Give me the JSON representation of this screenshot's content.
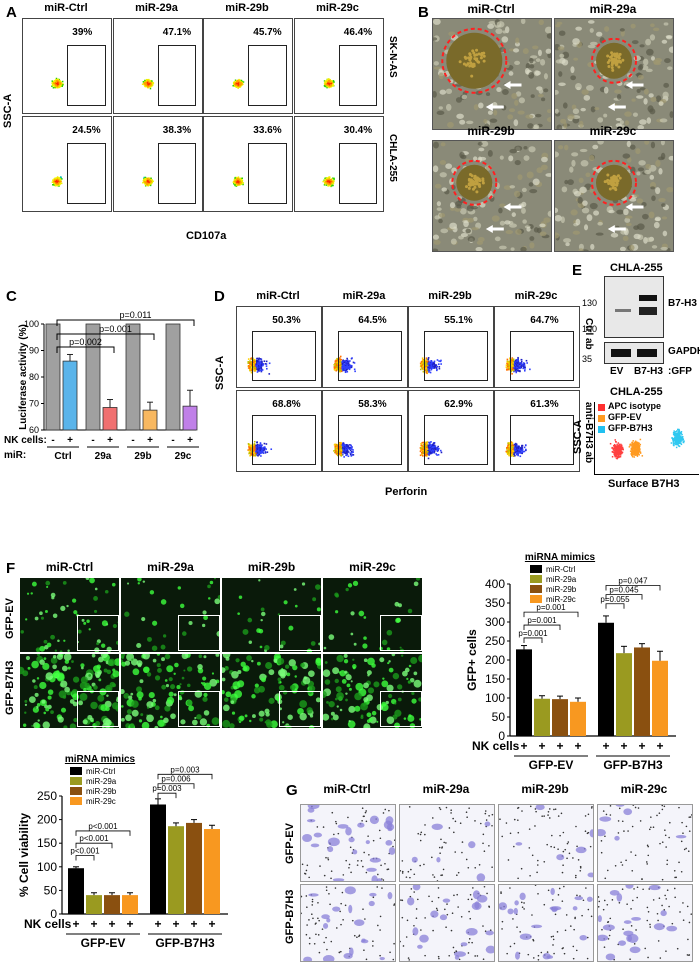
{
  "panels": {
    "A": "A",
    "B": "B",
    "C": "C",
    "D": "D",
    "E": "E",
    "F": "F",
    "G": "G"
  },
  "panelA": {
    "cols": [
      "miR-Ctrl",
      "miR-29a",
      "miR-29b",
      "miR-29c"
    ],
    "rows": [
      "SK-N-AS",
      "CHLA-255"
    ],
    "pcts": [
      [
        "39%",
        "47.1%",
        "45.7%",
        "46.4%"
      ],
      [
        "24.5%",
        "38.3%",
        "33.6%",
        "30.4%"
      ]
    ],
    "ylabel": "SSC-A",
    "xlabel": "CD107a"
  },
  "panelB": {
    "titles": [
      "miR-Ctrl",
      "miR-29a",
      "miR-29b",
      "miR-29c"
    ]
  },
  "panelD": {
    "cols": [
      "miR-Ctrl",
      "miR-29a",
      "miR-29b",
      "miR-29c"
    ],
    "rows": [
      "Ctrl ab",
      "anti-B7H3 ab"
    ],
    "pcts": [
      [
        "50.3%",
        "64.5%",
        "55.1%",
        "64.7%"
      ],
      [
        "68.8%",
        "58.3%",
        "62.9%",
        "61.3%"
      ]
    ],
    "ylabel": "SSC-A",
    "xlabel": "Perforin"
  },
  "panelE": {
    "title1": "CHLA-255",
    "mw": [
      "130",
      "100",
      "35"
    ],
    "bands": [
      "B7-H3",
      "GAPDH"
    ],
    "lanes": [
      "EV",
      "B7-H3"
    ],
    "lane_suffix": ":GFP",
    "title2": "CHLA-255",
    "legend": [
      {
        "label": "APC isotype",
        "color": "#ff3030"
      },
      {
        "label": "GFP-EV",
        "color": "#ff9a20"
      },
      {
        "label": "GFP-B7H3",
        "color": "#20c0f0"
      }
    ],
    "ylabel": "SSC-A",
    "xlabel": "Surface B7H3"
  },
  "panelF": {
    "cols": [
      "miR-Ctrl",
      "miR-29a",
      "miR-29b",
      "miR-29c"
    ],
    "rows": [
      "GFP-EV",
      "GFP-B7H3"
    ]
  },
  "panelG": {
    "cols": [
      "miR-Ctrl",
      "miR-29a",
      "miR-29b",
      "miR-29c"
    ],
    "rows": [
      "GFP-EV",
      "GFP-B7H3"
    ]
  },
  "chart_data": [
    {
      "id": "C",
      "type": "bar",
      "ylabel": "Luciferase activity (%)",
      "ylim": [
        60,
        100
      ],
      "yticks": [
        "60",
        "70",
        "80",
        "90",
        "100"
      ],
      "nk_label": "NK cells:",
      "mir_label": "miR:",
      "nk_signs": [
        "-",
        "+",
        "-",
        "+",
        "-",
        "+",
        "-",
        "+"
      ],
      "groups": [
        "Ctrl",
        "29a",
        "29b",
        "29c"
      ],
      "values": [
        100,
        86,
        100,
        68.5,
        100,
        67.5,
        100,
        69
      ],
      "errors": [
        0,
        2.5,
        0,
        3,
        0,
        3,
        0,
        6
      ],
      "colors": [
        "#a0a0a0",
        "#5ab4ea",
        "#a0a0a0",
        "#f07070",
        "#a0a0a0",
        "#f8b860",
        "#a0a0a0",
        "#c080e8"
      ],
      "pvals": [
        "p=0.002",
        "p=0.001",
        "p=0.011"
      ]
    },
    {
      "id": "F",
      "type": "bar",
      "legend_title": "miRNA mimics",
      "series": [
        {
          "name": "miR-Ctrl",
          "color": "#000000"
        },
        {
          "name": "miR-29a",
          "color": "#9a9a20"
        },
        {
          "name": "miR-29b",
          "color": "#8a5010"
        },
        {
          "name": "miR-29c",
          "color": "#f89820"
        }
      ],
      "ylabel": "GFP+ cells",
      "ylim": [
        0,
        400
      ],
      "yticks": [
        "0",
        "50",
        "100",
        "150",
        "200",
        "250",
        "300",
        "350",
        "400"
      ],
      "groups": [
        "GFP-EV",
        "GFP-B7H3"
      ],
      "nk_label": "NK cells",
      "nk_signs": [
        "+",
        "+",
        "+",
        "+",
        "+",
        "+",
        "+",
        "+"
      ],
      "values": [
        [
          228,
          98,
          97,
          90
        ],
        [
          298,
          218,
          233,
          198
        ]
      ],
      "errors": [
        [
          10,
          8,
          8,
          10
        ],
        [
          18,
          18,
          10,
          25
        ]
      ],
      "pvals_left": [
        "p=0.001",
        "p=0.001",
        "p=0.001"
      ],
      "pvals_right": [
        "p=0.055",
        "p=0.045",
        "p=0.047"
      ]
    },
    {
      "id": "H",
      "type": "bar",
      "legend_title": "miRNA mimics",
      "series": [
        {
          "name": "miR-Ctrl",
          "color": "#000000"
        },
        {
          "name": "miR-29a",
          "color": "#9a9a20"
        },
        {
          "name": "miR-29b",
          "color": "#8a5010"
        },
        {
          "name": "miR-29c",
          "color": "#f89820"
        }
      ],
      "ylabel": "% Cell viability",
      "ylim": [
        0,
        250
      ],
      "yticks": [
        "0",
        "50",
        "100",
        "150",
        "200",
        "250"
      ],
      "groups": [
        "GFP-EV",
        "GFP-B7H3"
      ],
      "nk_label": "NK cells",
      "nk_signs": [
        "+",
        "+",
        "+",
        "+",
        "+",
        "+",
        "+",
        "+"
      ],
      "values": [
        [
          97,
          40,
          40,
          40
        ],
        [
          232,
          186,
          193,
          180
        ]
      ],
      "errors": [
        [
          3,
          5,
          5,
          5
        ],
        [
          12,
          7,
          7,
          8
        ]
      ],
      "pvals_left": [
        "p<0.001",
        "p<0.001",
        "p<0.001"
      ],
      "pvals_right": [
        "p=0.003",
        "p=0.006",
        "p=0.003"
      ]
    }
  ]
}
